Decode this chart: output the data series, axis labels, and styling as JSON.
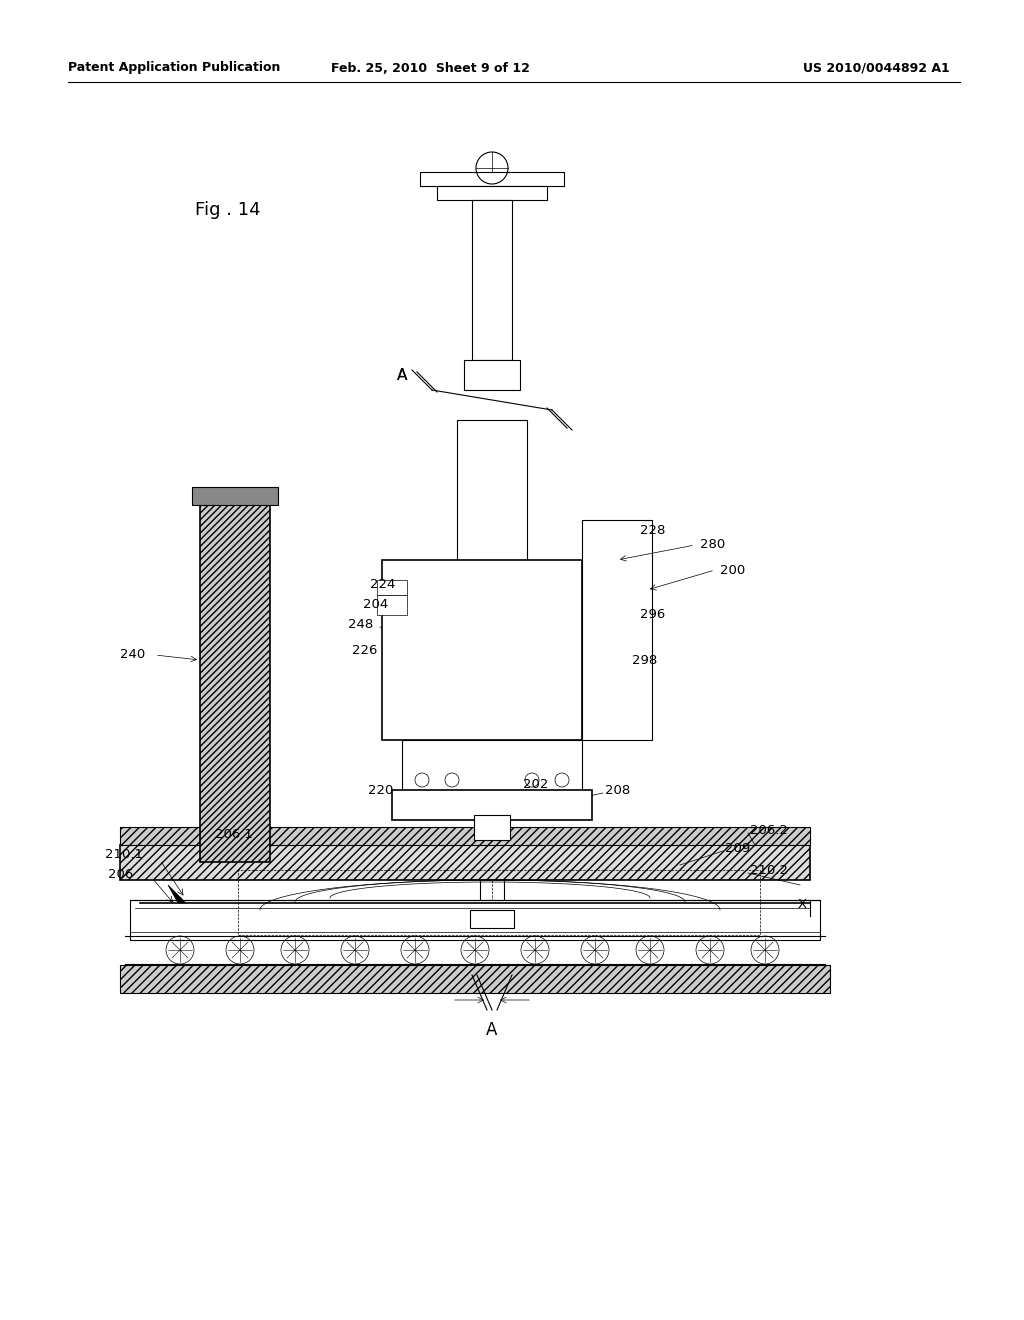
{
  "bg_color": "#ffffff",
  "header_left": "Patent Application Publication",
  "header_mid": "Feb. 25, 2010  Sheet 9 of 12",
  "header_right": "US 2010/0044892 A1",
  "fig_label": "Fig . 14"
}
